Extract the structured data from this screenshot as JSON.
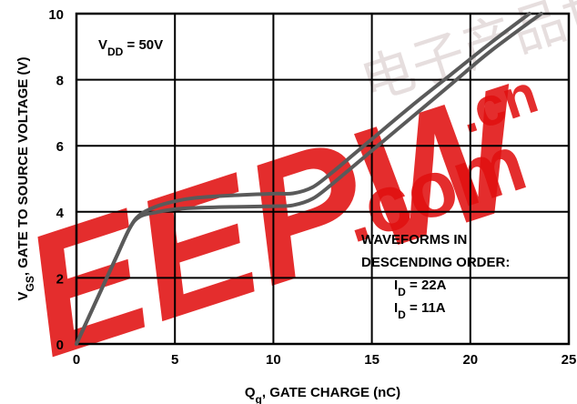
{
  "chart_data": {
    "type": "line",
    "xlabel": {
      "main": "Q",
      "sub": "g",
      "rest": ", GATE CHARGE (nC)"
    },
    "ylabel": {
      "main": "V",
      "sub": "GS",
      "rest": ", GATE TO SOURCE VOLTAGE (V)"
    },
    "xlim": [
      0,
      25
    ],
    "ylim": [
      0,
      10
    ],
    "x_ticks": [
      0,
      5,
      10,
      15,
      20,
      25
    ],
    "y_ticks": [
      0,
      2,
      4,
      6,
      8,
      10
    ],
    "grid": true,
    "annotations": {
      "vdd": {
        "main": "V",
        "sub": "DD",
        "rest": " = 50V"
      },
      "legend_title_1": "WAVEFORMS IN",
      "legend_title_2": "DESCENDING ORDER:",
      "legend_line_1": {
        "main": "I",
        "sub": "D",
        "rest": " = 22A"
      },
      "legend_line_2": {
        "main": "I",
        "sub": "D",
        "rest": " = 11A"
      }
    },
    "series": [
      {
        "name": "I_D = 22A",
        "color": "#5a5a5a",
        "points": [
          [
            0,
            0
          ],
          [
            1,
            1.3
          ],
          [
            2,
            2.6
          ],
          [
            2.7,
            3.5
          ],
          [
            3.2,
            3.9
          ],
          [
            4,
            4.15
          ],
          [
            5,
            4.32
          ],
          [
            6,
            4.42
          ],
          [
            8,
            4.5
          ],
          [
            10,
            4.55
          ],
          [
            11,
            4.56
          ],
          [
            12,
            4.75
          ],
          [
            13,
            5.2
          ],
          [
            14,
            5.7
          ],
          [
            15,
            6.2
          ],
          [
            17,
            7.2
          ],
          [
            19,
            8.15
          ],
          [
            21,
            9.1
          ],
          [
            23,
            10
          ]
        ]
      },
      {
        "name": "I_D = 11A",
        "color": "#5a5a5a",
        "points": [
          [
            0,
            0
          ],
          [
            1,
            1.3
          ],
          [
            2,
            2.6
          ],
          [
            2.7,
            3.5
          ],
          [
            3.2,
            3.85
          ],
          [
            4,
            3.98
          ],
          [
            5,
            4.08
          ],
          [
            6,
            4.12
          ],
          [
            8,
            4.15
          ],
          [
            10,
            4.17
          ],
          [
            11,
            4.2
          ],
          [
            12,
            4.4
          ],
          [
            13,
            4.85
          ],
          [
            14,
            5.35
          ],
          [
            15,
            5.85
          ],
          [
            17,
            6.85
          ],
          [
            19,
            7.85
          ],
          [
            21,
            8.85
          ],
          [
            23.6,
            10
          ]
        ]
      }
    ]
  },
  "watermark": {
    "text": "EEPW",
    "com": ".com",
    "cn": ".cn",
    "chinese": "电子产品世界",
    "color": "#e01010",
    "chinese_color": "#e6dede"
  }
}
